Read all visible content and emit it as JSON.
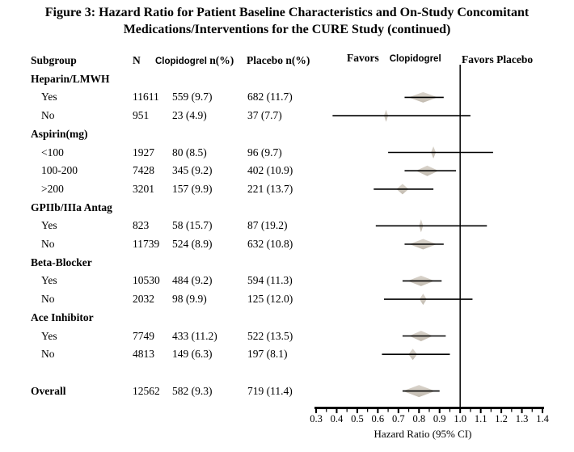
{
  "figure": {
    "title_line1": "Figure 3: Hazard Ratio for Patient Baseline Characteristics and On-Study Concomitant",
    "title_line2": "Medications/Interventions for the CURE Study (continued)"
  },
  "table": {
    "header": {
      "subgroup": "Subgroup",
      "n": "N",
      "clopidogrel": "Clopidogrel",
      "clopidogrel_unit": "n(%)",
      "placebo": "Placebo n(%)"
    }
  },
  "plot_header": {
    "favors_left_word": "Favors",
    "favors_left_drug": "Clopidogrel",
    "favors_right": "Favors Placebo"
  },
  "colors": {
    "background": "#ffffff",
    "text": "#000000",
    "line": "#000000",
    "diamond_fill": "#cdc6bb",
    "diamond_fill_light": "#dbd5cd",
    "diamond_fill_dark": "#c2bbb0"
  },
  "chart_data": {
    "type": "scatter",
    "subtype": "forest-plot",
    "title": "Hazard Ratio for Patient Baseline Characteristics and On-Study Concomitant Medications/Interventions for the CURE Study (continued)",
    "xlabel": "Hazard Ratio (95% CI)",
    "xlim": [
      0.3,
      1.4
    ],
    "reference_line": 1.0,
    "minor_tick_step": 0.05,
    "x_tick_labels": [
      "0.3",
      "0.4",
      "0.5",
      "0.6",
      "0.7",
      "0.8",
      "0.9",
      "1.0",
      "1.1",
      "1.2",
      "1.3",
      "1.4"
    ],
    "favors_left": "Favors Clopidogrel",
    "favors_right": "Favors Placebo",
    "rows": [
      {
        "type": "group",
        "label": "Heparin/LMWH"
      },
      {
        "type": "item",
        "label": "Yes",
        "n": "11611",
        "clopidogrel": "559 (9.7)",
        "placebo": "682 (11.7)",
        "hr": 0.82,
        "ci_low": 0.73,
        "ci_high": 0.92,
        "diamond_w": 36,
        "diamond_h": 13
      },
      {
        "type": "item",
        "label": "No",
        "n": "951",
        "clopidogrel": "23 (4.9)",
        "placebo": "37 (7.7)",
        "hr": 0.64,
        "ci_low": 0.38,
        "ci_high": 1.05,
        "diamond_w": 5,
        "diamond_h": 15
      },
      {
        "type": "group",
        "label": "Aspirin(mg)"
      },
      {
        "type": "item",
        "label": "<100",
        "n": "1927",
        "clopidogrel": "80 (8.5)",
        "placebo": "96 (9.7)",
        "hr": 0.87,
        "ci_low": 0.65,
        "ci_high": 1.16,
        "diamond_w": 6,
        "diamond_h": 15
      },
      {
        "type": "item",
        "label": "100-200",
        "n": "7428",
        "clopidogrel": "345 (9.2)",
        "placebo": "402 (10.9)",
        "hr": 0.84,
        "ci_low": 0.73,
        "ci_high": 0.98,
        "diamond_w": 28,
        "diamond_h": 13
      },
      {
        "type": "item",
        "label": ">200",
        "n": "3201",
        "clopidogrel": "157 (9.9)",
        "placebo": "221 (13.7)",
        "hr": 0.72,
        "ci_low": 0.58,
        "ci_high": 0.87,
        "diamond_w": 15,
        "diamond_h": 13
      },
      {
        "type": "group",
        "label": "GPIIb/IIIa Antag"
      },
      {
        "type": "item",
        "label": "Yes",
        "n": "823",
        "clopidogrel": "58 (15.7)",
        "placebo": "87 (19.2)",
        "hr": 0.81,
        "ci_low": 0.59,
        "ci_high": 1.13,
        "diamond_w": 5,
        "diamond_h": 16
      },
      {
        "type": "item",
        "label": "No",
        "n": "11739",
        "clopidogrel": "524 (8.9)",
        "placebo": "632 (10.8)",
        "hr": 0.82,
        "ci_low": 0.73,
        "ci_high": 0.92,
        "diamond_w": 34,
        "diamond_h": 13
      },
      {
        "type": "group",
        "label": "Beta-Blocker"
      },
      {
        "type": "item",
        "label": "Yes",
        "n": "10530",
        "clopidogrel": "484 (9.2)",
        "placebo": "594 (11.3)",
        "hr": 0.81,
        "ci_low": 0.72,
        "ci_high": 0.91,
        "diamond_w": 33,
        "diamond_h": 13
      },
      {
        "type": "item",
        "label": "No",
        "n": "2032",
        "clopidogrel": "98 (9.9)",
        "placebo": "125 (12.0)",
        "hr": 0.82,
        "ci_low": 0.63,
        "ci_high": 1.06,
        "diamond_w": 9,
        "diamond_h": 14
      },
      {
        "type": "group",
        "label": "Ace Inhibitor"
      },
      {
        "type": "item",
        "label": "Yes",
        "n": "7749",
        "clopidogrel": "433 (11.2)",
        "placebo": "522 (13.5)",
        "hr": 0.81,
        "ci_low": 0.72,
        "ci_high": 0.93,
        "diamond_w": 29,
        "diamond_h": 13
      },
      {
        "type": "item",
        "label": "No",
        "n": "4813",
        "clopidogrel": "149 (6.3)",
        "placebo": "197 (8.1)",
        "hr": 0.77,
        "ci_low": 0.62,
        "ci_high": 0.95,
        "diamond_w": 11,
        "diamond_h": 14
      },
      {
        "type": "blank"
      },
      {
        "type": "overall",
        "label": "Overall",
        "n": "12562",
        "clopidogrel": "582 (9.3)",
        "placebo": "719 (11.4)",
        "hr": 0.8,
        "ci_low": 0.72,
        "ci_high": 0.9,
        "diamond_w": 40,
        "diamond_h": 15
      }
    ]
  }
}
